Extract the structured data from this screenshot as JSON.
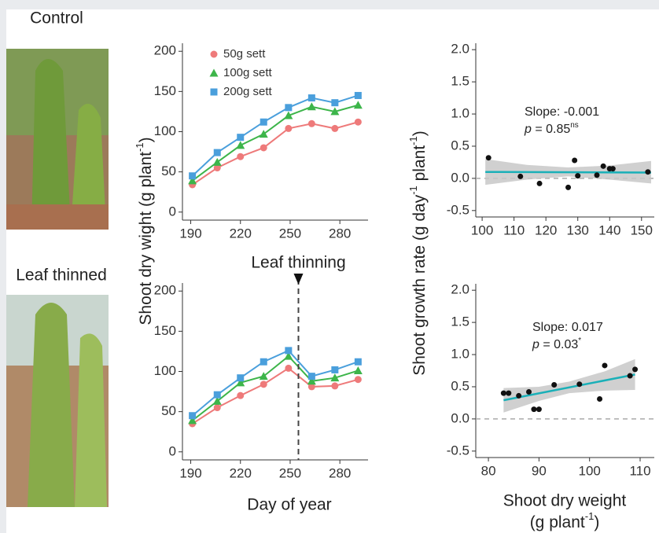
{
  "photos": [
    "Control",
    "Leaf thinned"
  ],
  "left_ylabel": [
    {
      "text": "Shoot dry wight (g plant"
    },
    {
      "sup": "-1"
    },
    {
      "text": ")"
    }
  ],
  "left_xlabel": "Day of year",
  "right_ylabel": [
    {
      "text": "Shoot growth rate (g day"
    },
    {
      "sup": "-1"
    },
    {
      "text": " plant"
    },
    {
      "sup": "-1"
    },
    {
      "text": ")"
    }
  ],
  "right_xlabel": {
    "line1": "Shoot dry weight",
    "line2": [
      {
        "text": "(g plant"
      },
      {
        "sup": "-1"
      },
      {
        "text": ")"
      }
    ]
  },
  "chart_data": [
    {
      "type": "line",
      "legend": "upper left",
      "x": [
        191,
        206,
        220,
        234,
        249,
        263,
        277,
        291
      ],
      "series": [
        {
          "name": "50g sett",
          "color": "#ee7a7a",
          "marker": "circle",
          "values": [
            34,
            55,
            69,
            80,
            104,
            110,
            104,
            112
          ]
        },
        {
          "name": "100g sett",
          "color": "#3db54a",
          "marker": "triangle",
          "values": [
            39,
            62,
            83,
            97,
            120,
            131,
            125,
            133
          ]
        },
        {
          "name": "200g sett",
          "color": "#4a9fdc",
          "marker": "square",
          "values": [
            45,
            74,
            93,
            112,
            130,
            142,
            136,
            145
          ]
        }
      ],
      "xlim": [
        185,
        297
      ],
      "xticks": [
        190,
        220,
        250,
        280
      ],
      "ylim": [
        -10,
        210
      ],
      "yticks": [
        0,
        50,
        100,
        150,
        200
      ]
    },
    {
      "type": "line",
      "x": [
        191,
        206,
        220,
        234,
        249,
        263,
        277,
        291
      ],
      "series": [
        {
          "color": "#ee7a7a",
          "marker": "circle",
          "values": [
            35,
            55,
            70,
            84,
            104,
            81,
            82,
            90
          ]
        },
        {
          "color": "#3db54a",
          "marker": "triangle",
          "values": [
            39,
            63,
            86,
            94,
            119,
            88,
            92,
            101
          ]
        },
        {
          "color": "#4a9fdc",
          "marker": "square",
          "values": [
            45,
            71,
            92,
            112,
            126,
            94,
            102,
            112
          ]
        }
      ],
      "annotation": {
        "text": "Leaf thinning",
        "x": 255
      },
      "xlim": [
        185,
        297
      ],
      "xticks": [
        190,
        220,
        250,
        280
      ],
      "ylim": [
        -10,
        210
      ],
      "yticks": [
        0,
        50,
        100,
        150,
        200
      ]
    },
    {
      "type": "scatter",
      "color": "#111111",
      "fit_color": "#1ab0b8",
      "hline": 0,
      "x": [
        102,
        112,
        118,
        127,
        129,
        130,
        136,
        138,
        140,
        141,
        152
      ],
      "values": [
        0.32,
        0.03,
        -0.08,
        -0.14,
        0.28,
        0.04,
        0.05,
        0.19,
        0.15,
        0.15,
        0.1
      ],
      "fit": {
        "x": [
          101,
          153
        ],
        "y": [
          0.1,
          0.09
        ]
      },
      "ci": {
        "x": [
          101,
          114,
          127,
          140,
          153
        ],
        "lower": [
          -0.1,
          -0.02,
          0.03,
          -0.02,
          -0.08
        ],
        "upper": [
          0.3,
          0.21,
          0.17,
          0.2,
          0.27
        ]
      },
      "slope_label": "Slope: -0.001",
      "p_label": [
        {
          "italic": "p"
        },
        {
          "text": " = 0.85"
        },
        {
          "sup": "ns"
        }
      ],
      "xlim": [
        98,
        154
      ],
      "xticks": [
        100,
        110,
        120,
        130,
        140,
        150
      ],
      "ylim": [
        -0.6,
        2.1
      ],
      "yticks": [
        {
          "value": -0.5,
          "label": "-0.5"
        },
        {
          "value": 0,
          "label": "0.0"
        },
        0.5,
        {
          "value": 1,
          "label": "1.0"
        },
        1.5,
        {
          "value": 2,
          "label": "2.0"
        }
      ]
    },
    {
      "type": "scatter",
      "color": "#111111",
      "fit_color": "#1ab0b8",
      "hline": 0,
      "x": [
        83,
        84,
        86,
        88,
        89,
        90,
        93,
        98,
        102,
        103,
        108,
        109
      ],
      "values": [
        0.4,
        0.4,
        0.36,
        0.42,
        0.15,
        0.15,
        0.53,
        0.54,
        0.31,
        0.83,
        0.67,
        0.77
      ],
      "fit": {
        "x": [
          83,
          109
        ],
        "y": [
          0.29,
          0.69
        ]
      },
      "ci": {
        "x": [
          83,
          90,
          96,
          103,
          109
        ],
        "lower": [
          0.1,
          0.28,
          0.4,
          0.44,
          0.45
        ],
        "upper": [
          0.48,
          0.5,
          0.58,
          0.74,
          0.93
        ]
      },
      "slope_label": "Slope: 0.017",
      "p_label": [
        {
          "italic": "p"
        },
        {
          "text": " = 0.03"
        },
        {
          "sup": "*"
        }
      ],
      "xlim": [
        77.5,
        112.8
      ],
      "xticks": [
        80,
        90,
        100,
        110
      ],
      "ylim": [
        -0.6,
        2.1
      ],
      "yticks": [
        {
          "value": -0.5,
          "label": "-0.5"
        },
        {
          "value": 0,
          "label": "0.0"
        },
        0.5,
        {
          "value": 1,
          "label": "1.0"
        },
        1.5,
        {
          "value": 2,
          "label": "2.0"
        }
      ]
    }
  ]
}
